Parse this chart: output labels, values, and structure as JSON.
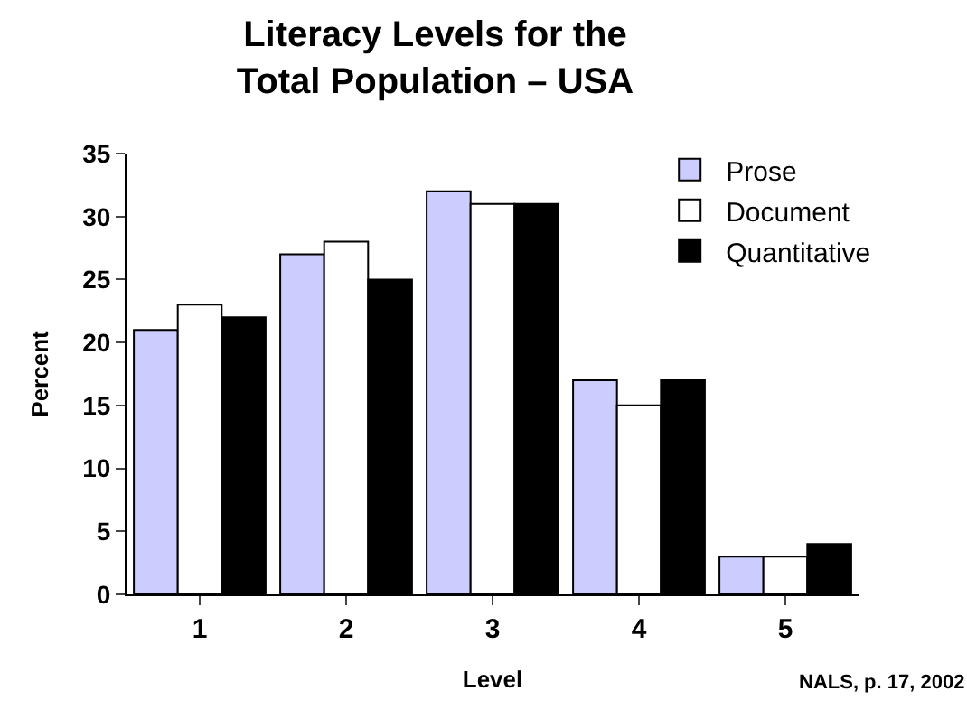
{
  "chart_data": {
    "type": "bar",
    "title": "Literacy Levels for the\nTotal Population – USA",
    "xlabel": "Level",
    "ylabel": "Percent",
    "categories": [
      "1",
      "2",
      "3",
      "4",
      "5"
    ],
    "series": [
      {
        "name": "Prose",
        "color": "#ccccff",
        "values": [
          21,
          27,
          32,
          17,
          3
        ]
      },
      {
        "name": "Document",
        "color": "#ffffff",
        "values": [
          23,
          28,
          31,
          15,
          3
        ]
      },
      {
        "name": "Quantitative",
        "color": "#000000",
        "values": [
          22,
          25,
          31,
          17,
          4
        ]
      }
    ],
    "ylim": [
      0,
      35
    ],
    "yticks": [
      0,
      5,
      10,
      15,
      20,
      25,
      30,
      35
    ],
    "grid": false,
    "legend": "top right",
    "annotations": [
      "NALS, p. 17, 2002"
    ]
  }
}
